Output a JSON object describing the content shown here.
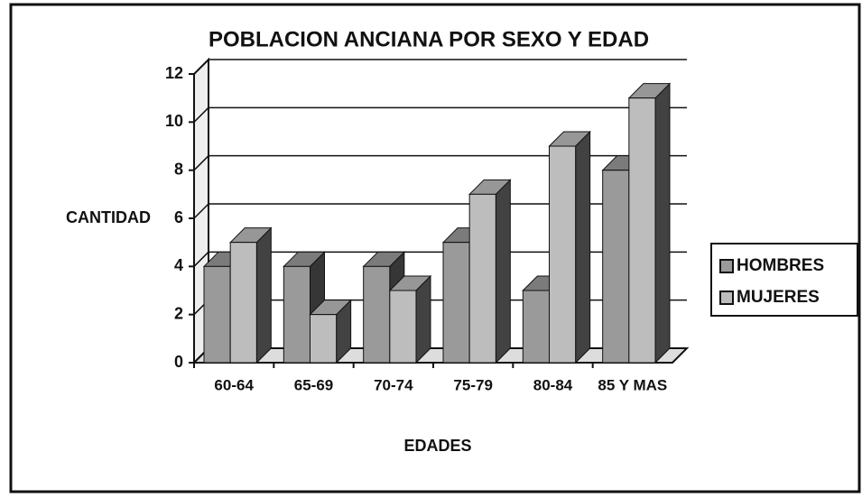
{
  "chart_data": {
    "type": "bar3d",
    "title": "POBLACION ANCIANA POR SEXO Y EDAD",
    "y_label": "CANTIDAD",
    "x_label": "EDADES",
    "categories": [
      "60-64",
      "65-69",
      "70-74",
      "75-79",
      "80-84",
      "85 Y MAS"
    ],
    "series": [
      {
        "name": "HOMBRES",
        "color": "#9a9a9a",
        "values": [
          4,
          4,
          4,
          5,
          3,
          8
        ]
      },
      {
        "name": "MUJERES",
        "color": "#bdbdbd",
        "values": [
          5,
          2,
          3,
          7,
          9,
          11
        ]
      }
    ],
    "ylim": [
      0,
      12
    ],
    "yticks": [
      0,
      2,
      4,
      6,
      8,
      10,
      12
    ],
    "grid": true,
    "legend": "right"
  }
}
